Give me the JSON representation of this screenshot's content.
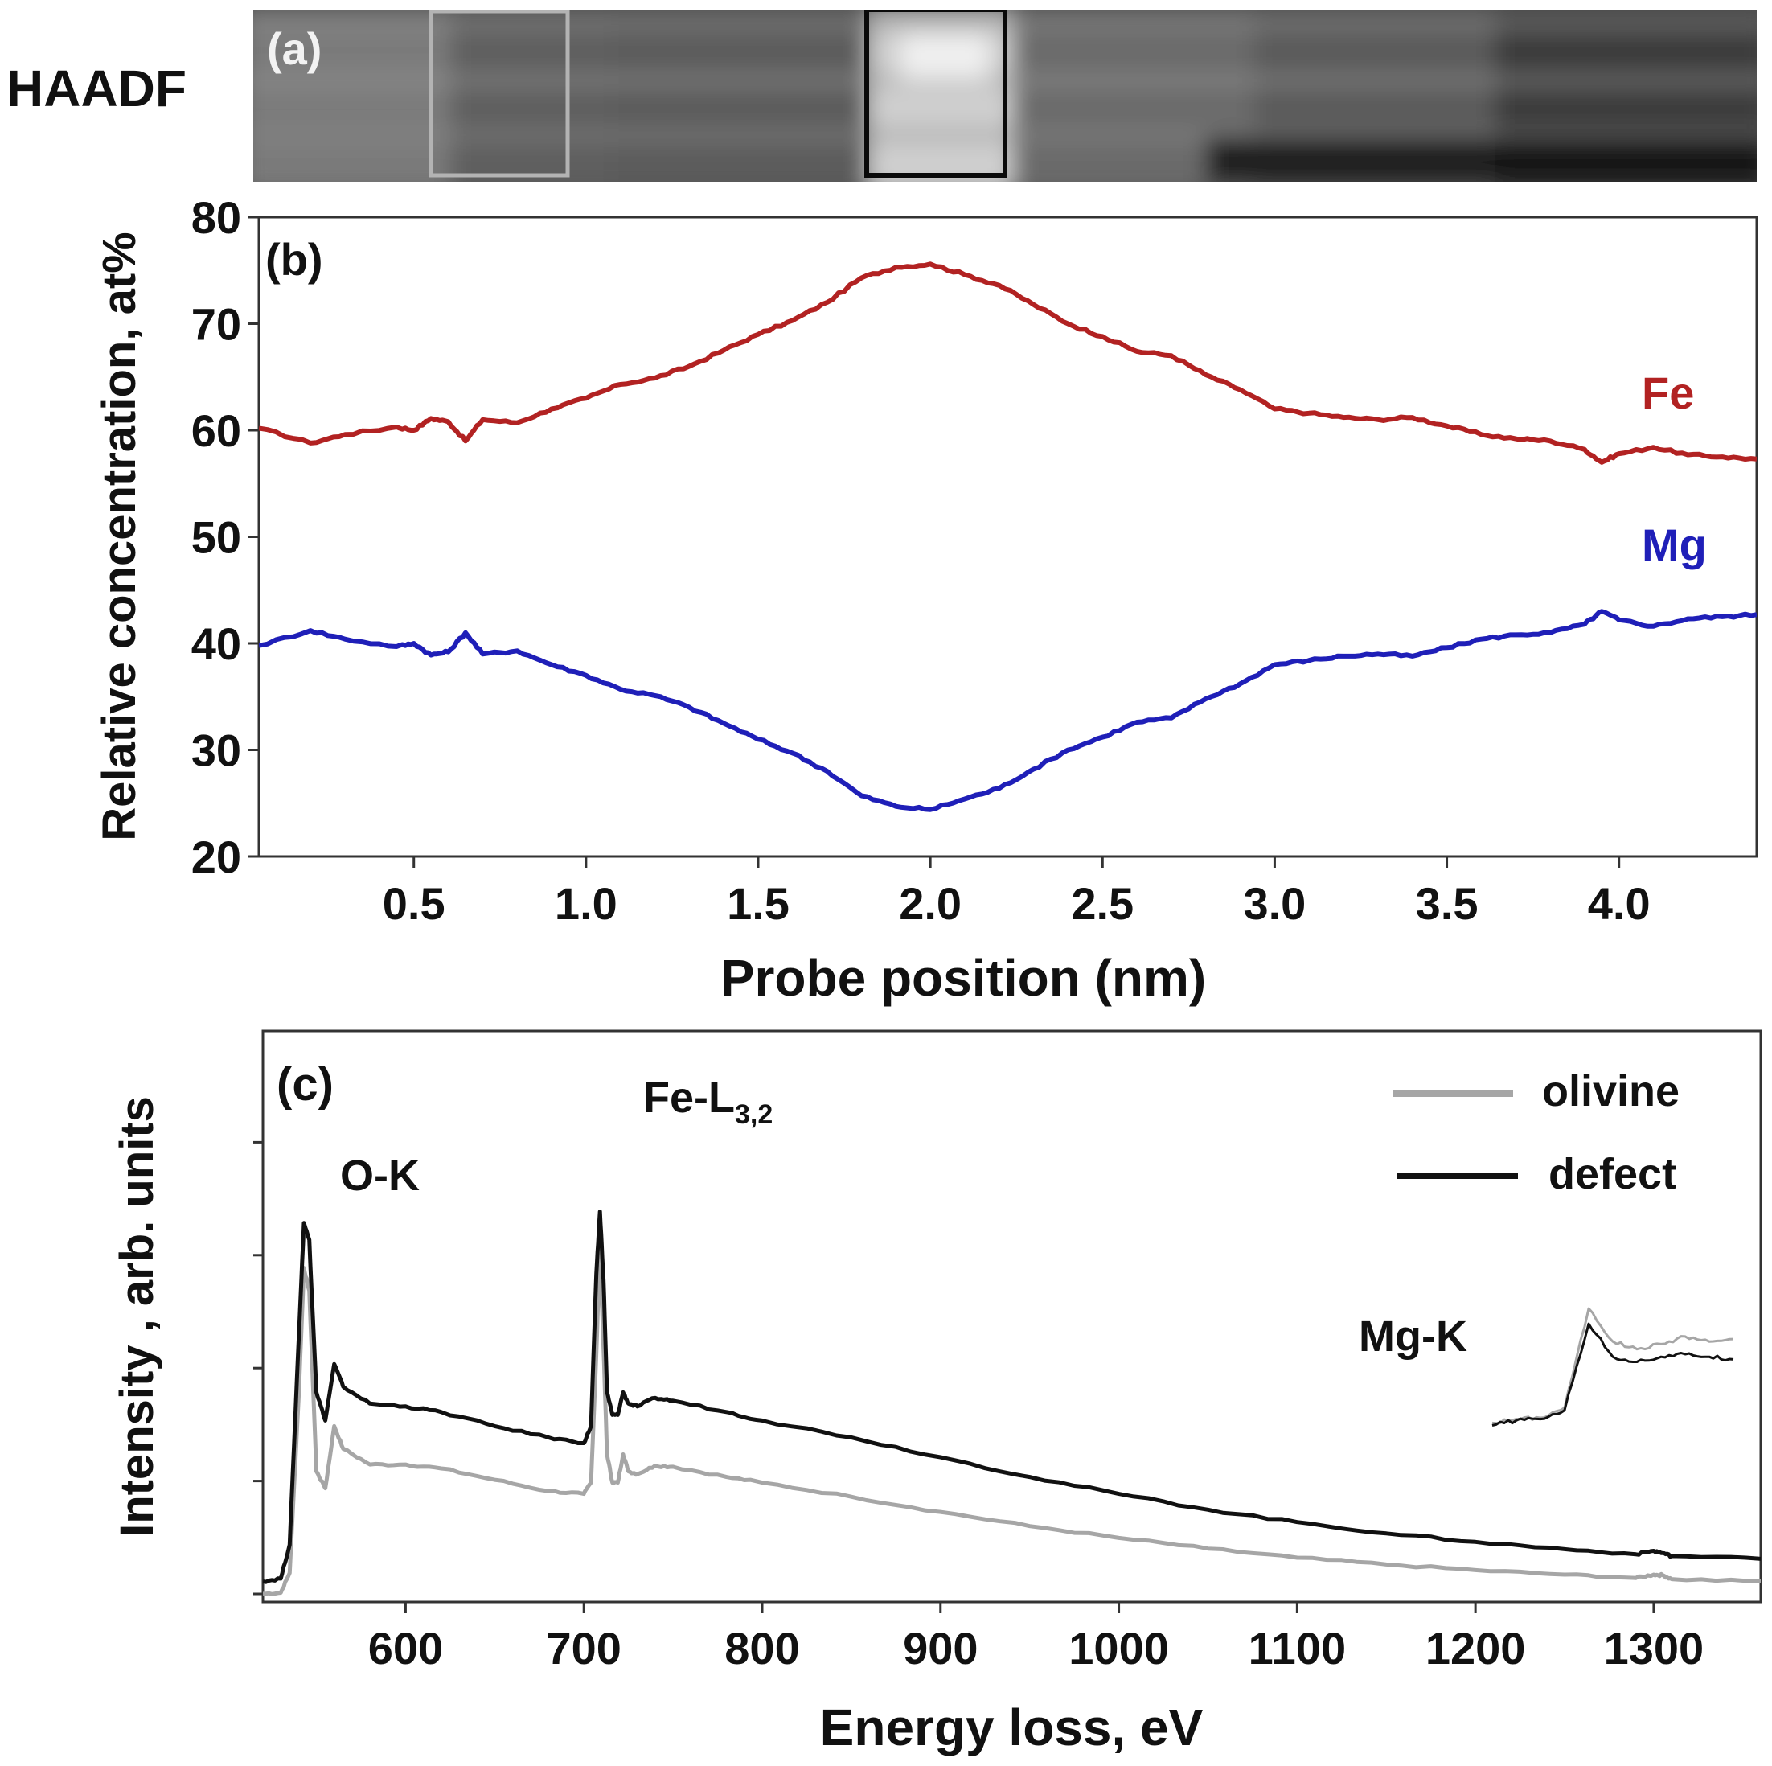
{
  "panel_a": {
    "side_label": "HAADF",
    "panel_label": "(a)"
  },
  "chart_data": [
    {
      "type": "line",
      "panel": "(b)",
      "xlabel": "Probe position (nm)",
      "ylabel": "Relative concentration, at%",
      "xlim": [
        0.05,
        4.4
      ],
      "ylim": [
        20,
        80
      ],
      "xticks": [
        "0.5",
        "1.0",
        "1.5",
        "2.0",
        "2.5",
        "3.0",
        "3.5",
        "4.0"
      ],
      "yticks": [
        "20",
        "30",
        "40",
        "50",
        "60",
        "70",
        "80"
      ],
      "x": [
        0.05,
        0.2,
        0.3,
        0.45,
        0.5,
        0.55,
        0.6,
        0.65,
        0.7,
        0.8,
        0.9,
        1.0,
        1.1,
        1.2,
        1.3,
        1.4,
        1.5,
        1.6,
        1.7,
        1.8,
        1.9,
        2.0,
        2.1,
        2.2,
        2.3,
        2.4,
        2.5,
        2.6,
        2.7,
        2.8,
        2.9,
        3.0,
        3.1,
        3.2,
        3.3,
        3.4,
        3.5,
        3.6,
        3.7,
        3.8,
        3.9,
        3.95,
        4.0,
        4.1,
        4.2,
        4.3,
        4.4
      ],
      "series": [
        {
          "name": "Fe",
          "color": "#b22222",
          "values": [
            60.2,
            58.8,
            59.6,
            60.3,
            60.0,
            61.1,
            60.8,
            59.0,
            61.0,
            60.7,
            62.0,
            63.0,
            64.3,
            64.9,
            66.0,
            67.5,
            69.0,
            70.3,
            72.0,
            74.3,
            75.3,
            75.6,
            74.6,
            73.6,
            71.8,
            70.0,
            68.8,
            67.4,
            67.0,
            65.2,
            63.8,
            62.0,
            61.6,
            61.2,
            61.0,
            61.2,
            60.4,
            59.6,
            59.2,
            59.0,
            58.2,
            57.0,
            57.8,
            58.4,
            57.7,
            57.5,
            57.3
          ]
        },
        {
          "name": "Mg",
          "color": "#1f1fb8",
          "values": [
            39.8,
            41.2,
            40.4,
            39.7,
            40.0,
            38.9,
            39.2,
            41.0,
            39.0,
            39.3,
            38.0,
            37.0,
            35.7,
            35.1,
            34.0,
            32.5,
            31.0,
            29.7,
            28.0,
            25.7,
            24.7,
            24.4,
            25.4,
            26.4,
            28.2,
            30.0,
            31.2,
            32.6,
            33.0,
            34.8,
            36.2,
            38.0,
            38.4,
            38.8,
            39.0,
            38.8,
            39.6,
            40.4,
            40.8,
            41.0,
            41.8,
            43.0,
            42.2,
            41.6,
            42.3,
            42.5,
            42.7
          ]
        }
      ]
    },
    {
      "type": "line",
      "panel": "(c)",
      "xlabel": "Energy loss, eV",
      "ylabel": "Intensity , arb. units",
      "xlim": [
        520,
        1360
      ],
      "ylim": [
        0,
        1
      ],
      "xticks": [
        "600",
        "700",
        "800",
        "900",
        "1000",
        "1100",
        "1200",
        "1300"
      ],
      "annotations": {
        "o_k": "O-K",
        "fe_l_main": "Fe-L",
        "fe_l_sub": "3,2",
        "mg_k": "Mg-K"
      },
      "legend_position": "top-right",
      "x": [
        520,
        530,
        535,
        540,
        543,
        546,
        550,
        555,
        560,
        565,
        580,
        600,
        620,
        650,
        680,
        700,
        704,
        707,
        709,
        711,
        713,
        716,
        719,
        722,
        725,
        730,
        740,
        750,
        780,
        800,
        850,
        900,
        950,
        1000,
        1050,
        1100,
        1150,
        1200,
        1250,
        1290,
        1300,
        1305,
        1310,
        1360
      ],
      "series": [
        {
          "name": "olivine",
          "color": "#a6a6a6",
          "values": [
            0.003,
            0.005,
            0.04,
            0.35,
            0.58,
            0.54,
            0.22,
            0.19,
            0.3,
            0.26,
            0.232,
            0.232,
            0.225,
            0.205,
            0.185,
            0.18,
            0.2,
            0.43,
            0.62,
            0.44,
            0.25,
            0.2,
            0.2,
            0.25,
            0.22,
            0.215,
            0.23,
            0.228,
            0.21,
            0.2,
            0.175,
            0.148,
            0.123,
            0.102,
            0.083,
            0.067,
            0.055,
            0.045,
            0.037,
            0.031,
            0.037,
            0.036,
            0.029,
            0.025
          ]
        },
        {
          "name": "defect",
          "color": "#111111",
          "values": [
            0.025,
            0.03,
            0.09,
            0.45,
            0.66,
            0.63,
            0.36,
            0.31,
            0.41,
            0.37,
            0.34,
            0.335,
            0.325,
            0.3,
            0.28,
            0.27,
            0.3,
            0.57,
            0.68,
            0.56,
            0.36,
            0.32,
            0.32,
            0.36,
            0.34,
            0.335,
            0.35,
            0.345,
            0.325,
            0.31,
            0.28,
            0.245,
            0.21,
            0.18,
            0.152,
            0.13,
            0.11,
            0.095,
            0.082,
            0.073,
            0.079,
            0.075,
            0.07,
            0.065
          ]
        }
      ],
      "inset_mg_k": {
        "x": [
          0,
          1,
          2,
          3,
          4,
          5,
          6,
          7,
          8,
          9,
          10
        ],
        "series": [
          {
            "name": "olivine",
            "values": [
              0.08,
              0.11,
              0.12,
              0.2,
              0.98,
              0.72,
              0.66,
              0.7,
              0.76,
              0.72,
              0.74
            ]
          },
          {
            "name": "defect",
            "values": [
              0.06,
              0.1,
              0.11,
              0.18,
              0.86,
              0.6,
              0.56,
              0.6,
              0.62,
              0.6,
              0.58
            ]
          }
        ]
      }
    }
  ]
}
